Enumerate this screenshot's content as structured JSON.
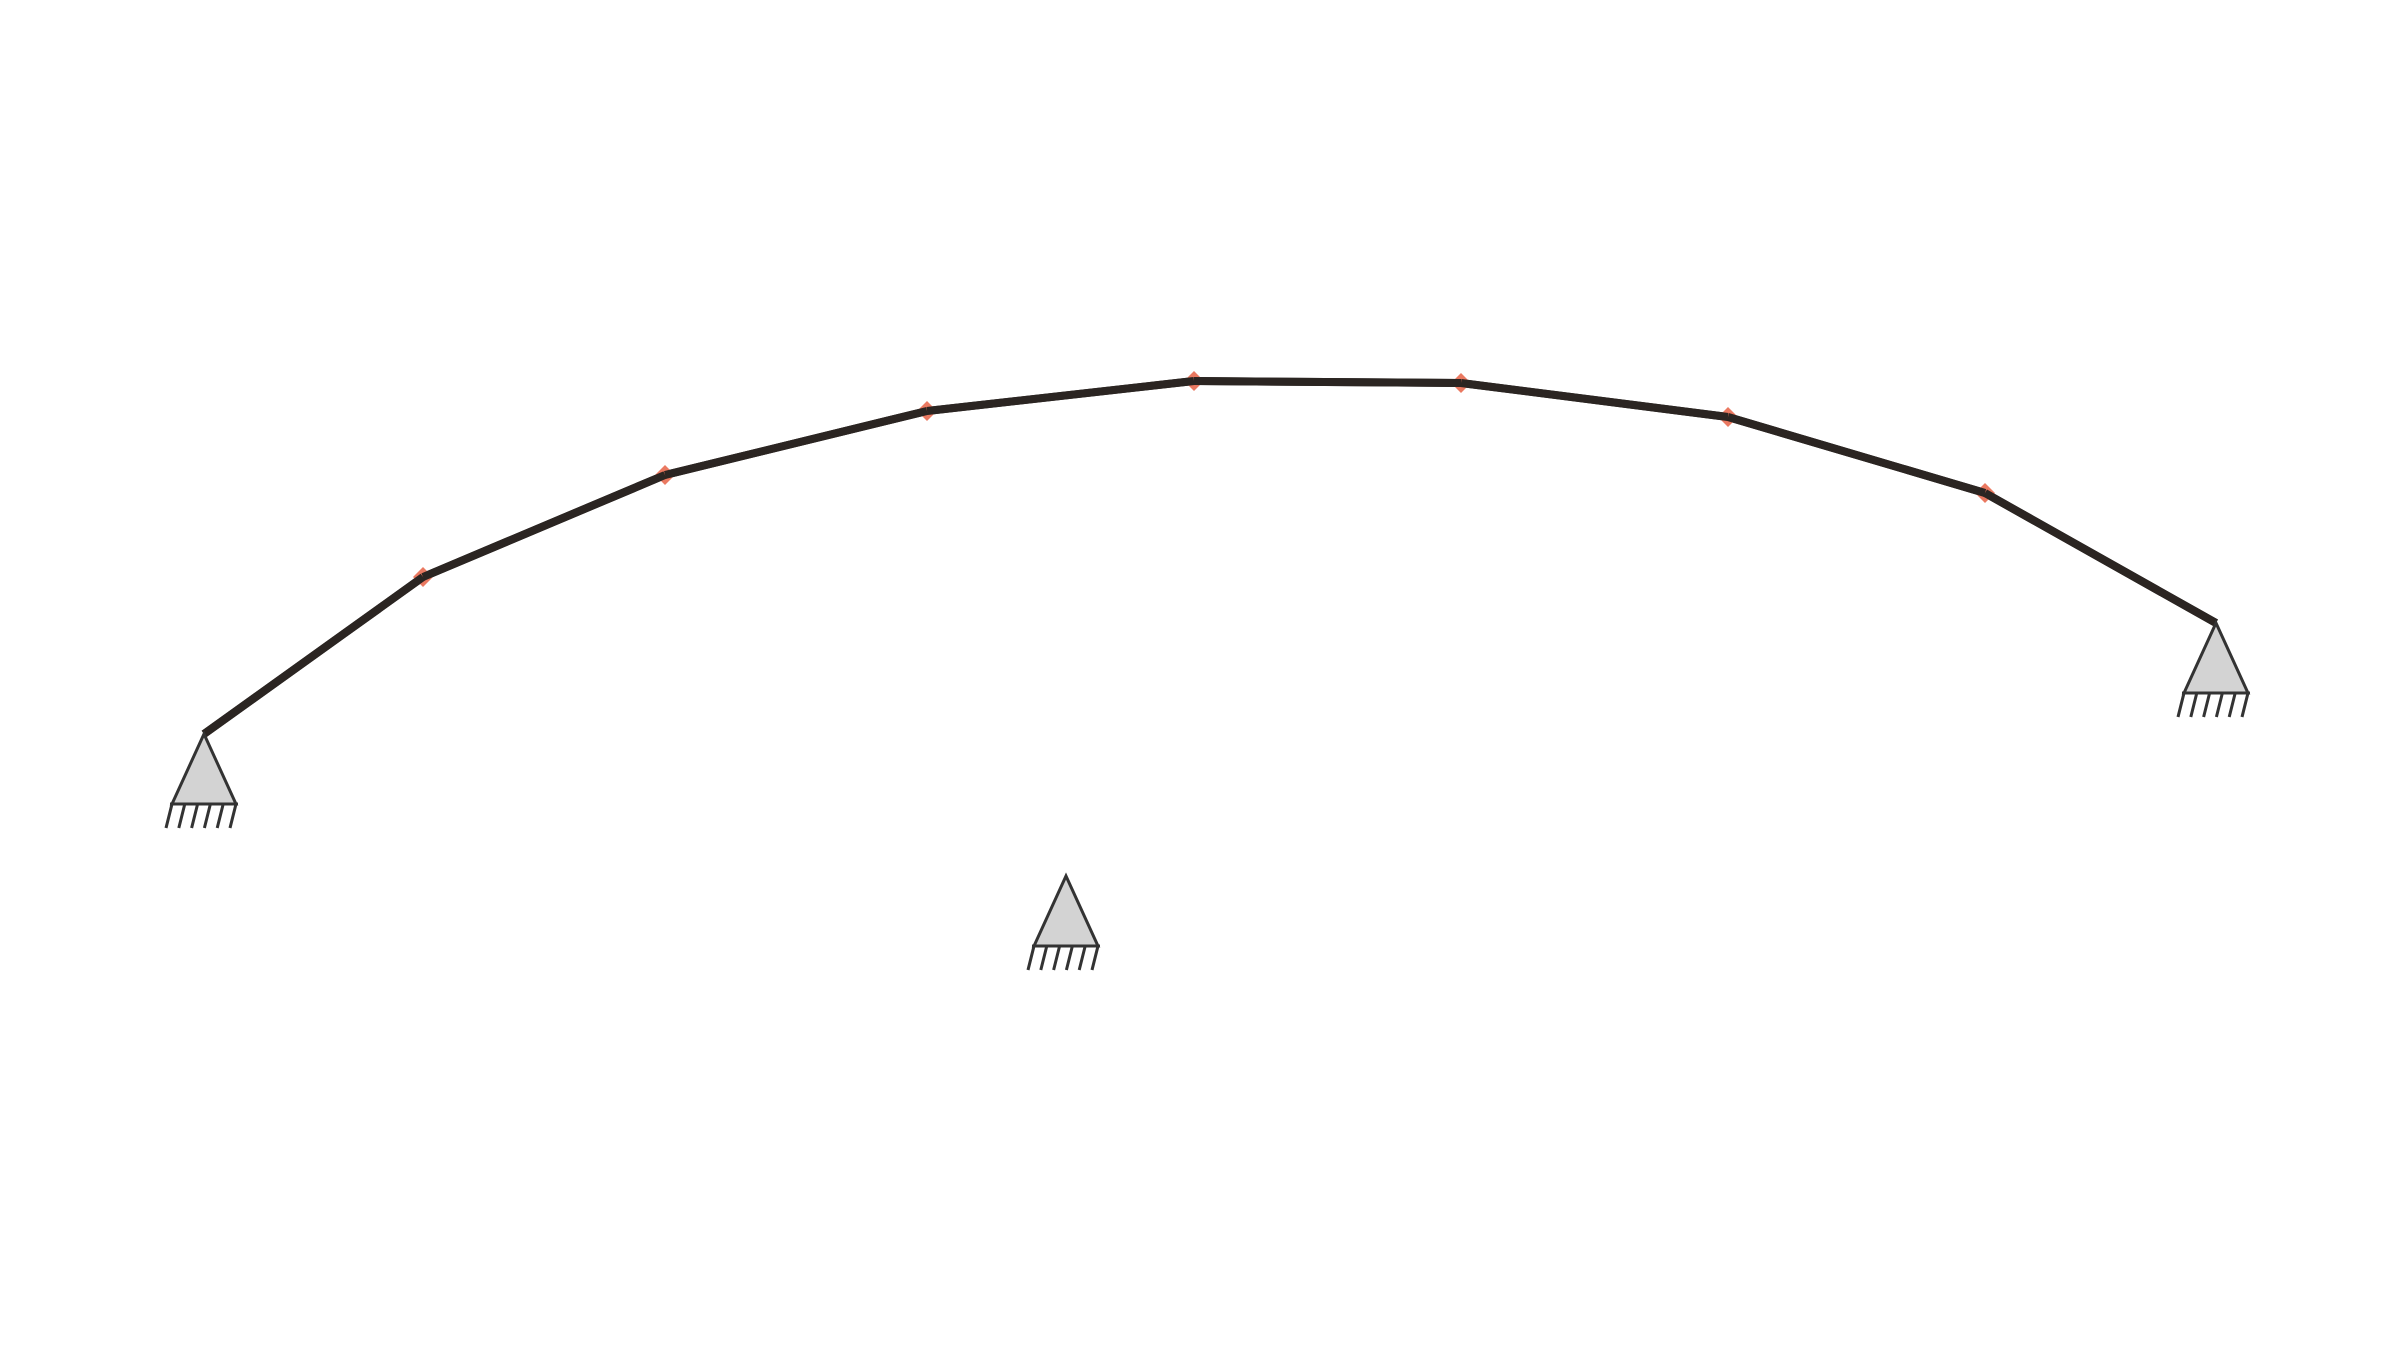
{
  "diagram": {
    "type": "arch-truss-structure",
    "colors": {
      "background": "#ffffff",
      "member": "#2b2522",
      "node_marker": "#e86a50",
      "support_fill": "#d3d3d3",
      "support_stroke": "#333333"
    },
    "members": [
      {
        "from": "support-left",
        "to": "node-1"
      },
      {
        "from": "node-1",
        "to": "node-2"
      },
      {
        "from": "node-2",
        "to": "node-3"
      },
      {
        "from": "node-3",
        "to": "node-4"
      },
      {
        "from": "node-4",
        "to": "node-5"
      },
      {
        "from": "node-5",
        "to": "node-6"
      },
      {
        "from": "node-6",
        "to": "node-7"
      },
      {
        "from": "node-7",
        "to": "support-right"
      }
    ],
    "nodes": [
      "node-1",
      "node-2",
      "node-3",
      "node-4",
      "node-5",
      "node-6",
      "node-7"
    ],
    "supports": [
      {
        "id": "support-left",
        "kind": "pinned"
      },
      {
        "id": "support-right",
        "kind": "pinned"
      },
      {
        "id": "support-center",
        "kind": "pinned"
      }
    ],
    "icons": {
      "support": "pinned-support-icon",
      "node": "node-marker-icon"
    }
  }
}
